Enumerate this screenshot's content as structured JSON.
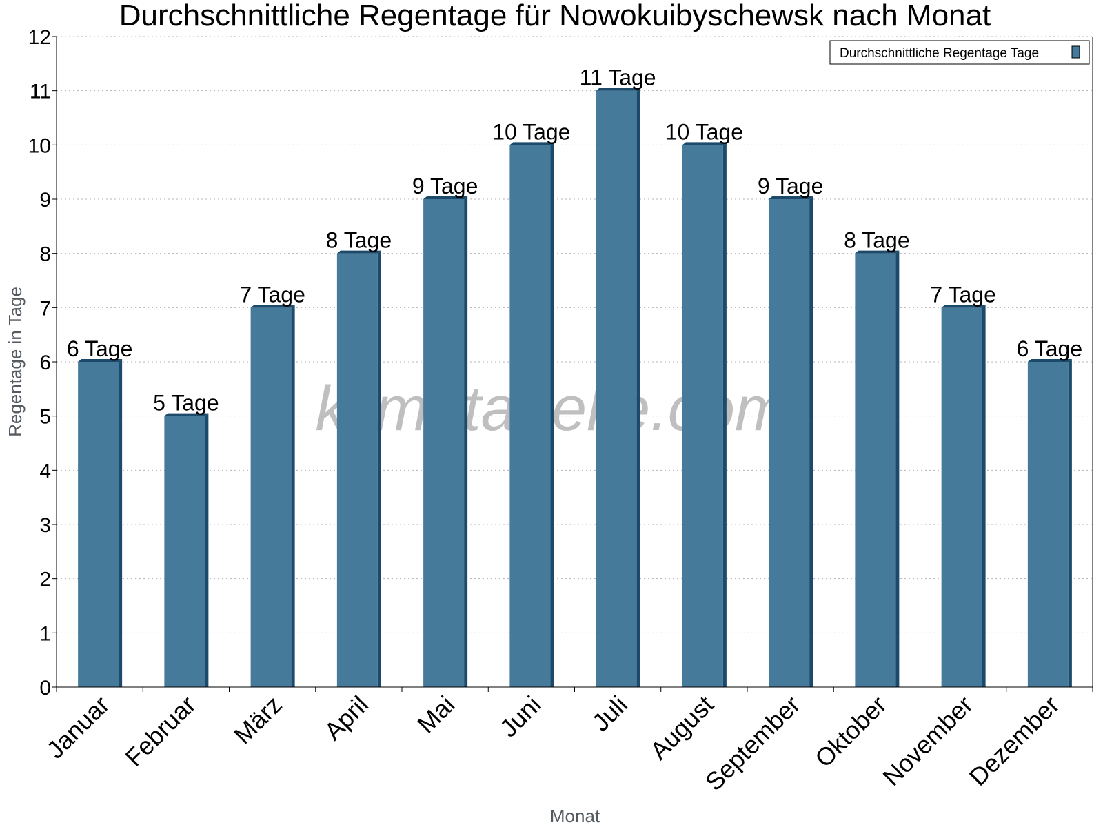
{
  "chart_data": {
    "type": "bar",
    "title": "Durchschnittliche Regentage für Nowokuibyschewsk nach Monat",
    "xlabel": "Monat",
    "ylabel": "Regentage in Tage",
    "ylim": [
      0,
      12
    ],
    "yticks": [
      0,
      1,
      2,
      3,
      4,
      5,
      6,
      7,
      8,
      9,
      10,
      11,
      12
    ],
    "grid": true,
    "legend_position": "top-right",
    "categories": [
      "Januar",
      "Februar",
      "März",
      "April",
      "Mai",
      "Juni",
      "Juli",
      "August",
      "September",
      "Oktober",
      "November",
      "Dezember"
    ],
    "series": [
      {
        "name": "Durchschnittliche Regentage Tage",
        "values": [
          6,
          5,
          7,
          8,
          9,
          10,
          11,
          10,
          9,
          8,
          7,
          6
        ],
        "labels": [
          "6 Tage",
          "5 Tage",
          "7 Tage",
          "8 Tage",
          "9 Tage",
          "10 Tage",
          "11 Tage",
          "10 Tage",
          "9 Tage",
          "8 Tage",
          "7 Tage",
          "6 Tage"
        ],
        "color": "#467a9b",
        "side_color": "#1c4a6a"
      }
    ]
  },
  "watermark": "klimatabelle.com"
}
